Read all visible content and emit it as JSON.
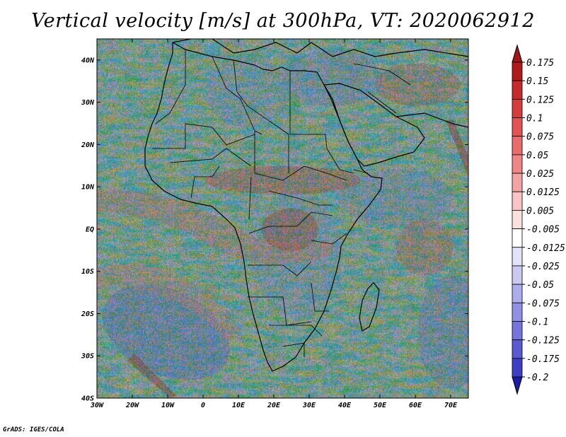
{
  "title": "Vertical velocity [m/s] at 300hPa, VT: 2020062912",
  "credit": "GrADS: IGES/COLA",
  "map": {
    "lon_range": [
      -30,
      75
    ],
    "lat_range": [
      -40,
      45
    ],
    "lat_ticks": [
      {
        "value": 40,
        "label": "40N"
      },
      {
        "value": 30,
        "label": "30N"
      },
      {
        "value": 20,
        "label": "20N"
      },
      {
        "value": 10,
        "label": "10N"
      },
      {
        "value": 0,
        "label": "EQ"
      },
      {
        "value": -10,
        "label": "10S"
      },
      {
        "value": -20,
        "label": "20S"
      },
      {
        "value": -30,
        "label": "30S"
      },
      {
        "value": -40,
        "label": "40S"
      }
    ],
    "lon_ticks": [
      {
        "value": -30,
        "label": "30W"
      },
      {
        "value": -20,
        "label": "20W"
      },
      {
        "value": -10,
        "label": "10W"
      },
      {
        "value": 0,
        "label": "0"
      },
      {
        "value": 10,
        "label": "10E"
      },
      {
        "value": 20,
        "label": "20E"
      },
      {
        "value": 30,
        "label": "30E"
      },
      {
        "value": 40,
        "label": "40E"
      },
      {
        "value": 50,
        "label": "50E"
      },
      {
        "value": 60,
        "label": "60E"
      },
      {
        "value": 70,
        "label": "70E"
      }
    ]
  },
  "colorbar": {
    "levels": [
      {
        "label": "0.175",
        "color": "#b01a1a"
      },
      {
        "label": "0.15",
        "color": "#c62a2a"
      },
      {
        "label": "0.125",
        "color": "#d63c3c"
      },
      {
        "label": "0.1",
        "color": "#e35353"
      },
      {
        "label": "0.075",
        "color": "#ea6b6b"
      },
      {
        "label": "0.05",
        "color": "#ef8585"
      },
      {
        "label": "0.025",
        "color": "#f4a3a3"
      },
      {
        "label": "0.0125",
        "color": "#f8c4c4"
      },
      {
        "label": "0.005",
        "color": "#fbe0e0"
      },
      {
        "label": "-0.005",
        "color": "#ffffff"
      },
      {
        "label": "-0.0125",
        "color": "#e2e2f8"
      },
      {
        "label": "-0.025",
        "color": "#c9c9f2"
      },
      {
        "label": "-0.05",
        "color": "#adadec"
      },
      {
        "label": "-0.075",
        "color": "#9090e5"
      },
      {
        "label": "-0.1",
        "color": "#7575dd"
      },
      {
        "label": "-0.125",
        "color": "#5a5ad3"
      },
      {
        "label": "-0.175",
        "color": "#3d3dc6"
      },
      {
        "label": "-0.2",
        "color": "#2626b5"
      }
    ],
    "top_color": "#a01515",
    "bottom_color": "#1a1aa6"
  }
}
